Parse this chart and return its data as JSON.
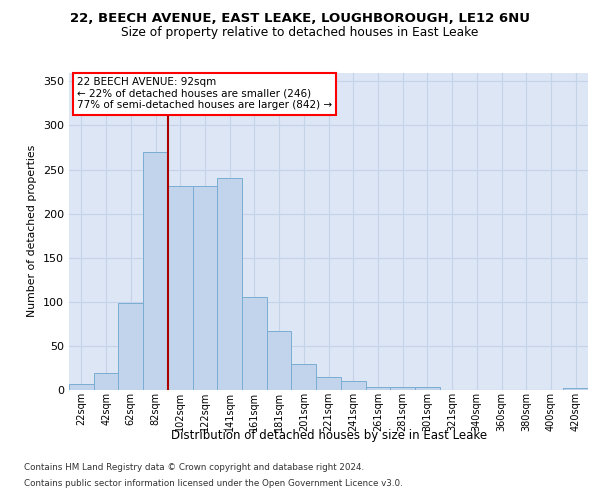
{
  "title_line1": "22, BEECH AVENUE, EAST LEAKE, LOUGHBOROUGH, LE12 6NU",
  "title_line2": "Size of property relative to detached houses in East Leake",
  "xlabel": "Distribution of detached houses by size in East Leake",
  "ylabel": "Number of detached properties",
  "bar_labels": [
    "22sqm",
    "42sqm",
    "62sqm",
    "82sqm",
    "102sqm",
    "122sqm",
    "141sqm",
    "161sqm",
    "181sqm",
    "201sqm",
    "221sqm",
    "241sqm",
    "261sqm",
    "281sqm",
    "301sqm",
    "321sqm",
    "340sqm",
    "360sqm",
    "380sqm",
    "400sqm",
    "420sqm"
  ],
  "bar_values": [
    7,
    19,
    99,
    270,
    231,
    231,
    240,
    105,
    67,
    30,
    15,
    10,
    3,
    3,
    3,
    0,
    0,
    0,
    0,
    0,
    2
  ],
  "bar_color": "#c2d4ec",
  "bar_edge_color": "#7aadd4",
  "vline_color": "#aa0000",
  "annotation_text": "22 BEECH AVENUE: 92sqm\n← 22% of detached houses are smaller (246)\n77% of semi-detached houses are larger (842) →",
  "grid_color": "#c5d3e8",
  "background_color": "#dce6f5",
  "ylim": [
    0,
    360
  ],
  "yticks": [
    0,
    50,
    100,
    150,
    200,
    250,
    300,
    350
  ],
  "footer_line1": "Contains HM Land Registry data © Crown copyright and database right 2024.",
  "footer_line2": "Contains public sector information licensed under the Open Government Licence v3.0.",
  "vline_pos": 3.5
}
